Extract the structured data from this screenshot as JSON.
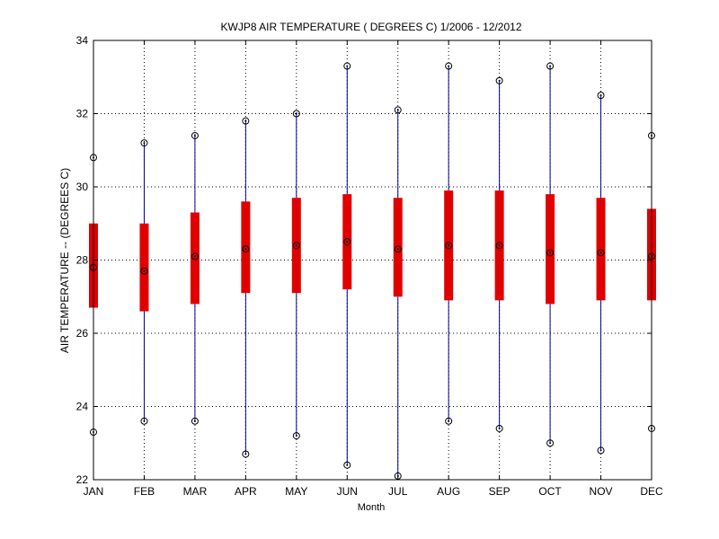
{
  "chart_data": {
    "type": "boxplot",
    "title": "KWJP8  AIR TEMPERATURE ( DEGREES C) 1/2006 - 12/2012",
    "xlabel": "Month",
    "ylabel": "AIR TEMPERATURE -- (DEGREES C)",
    "ylim": [
      22,
      34
    ],
    "yticks": [
      22,
      24,
      26,
      28,
      30,
      32,
      34
    ],
    "grid": true,
    "categories": [
      "JAN",
      "FEB",
      "MAR",
      "APR",
      "MAY",
      "JUN",
      "JUL",
      "AUG",
      "SEP",
      "OCT",
      "NOV",
      "DEC"
    ],
    "min": [
      23.3,
      23.6,
      23.6,
      22.7,
      23.2,
      22.4,
      22.1,
      23.6,
      23.4,
      23.0,
      22.8,
      23.4
    ],
    "max": [
      30.8,
      31.2,
      31.4,
      31.8,
      32.0,
      33.3,
      32.1,
      33.3,
      32.9,
      33.3,
      32.5,
      31.4
    ],
    "q1": [
      26.7,
      26.6,
      26.8,
      27.1,
      27.1,
      27.2,
      27.0,
      26.9,
      26.9,
      26.8,
      26.9,
      26.9
    ],
    "q3": [
      29.0,
      29.0,
      29.3,
      29.6,
      29.7,
      29.8,
      29.7,
      29.9,
      29.9,
      29.8,
      29.7,
      29.4
    ],
    "median": [
      27.8,
      27.7,
      28.1,
      28.3,
      28.4,
      28.5,
      28.3,
      28.4,
      28.4,
      28.2,
      28.2,
      28.1
    ],
    "colors": {
      "whisker": "#0000a0",
      "box": "#e00000",
      "marker": "#000000",
      "grid": "#000000",
      "axis": "#000000"
    }
  }
}
